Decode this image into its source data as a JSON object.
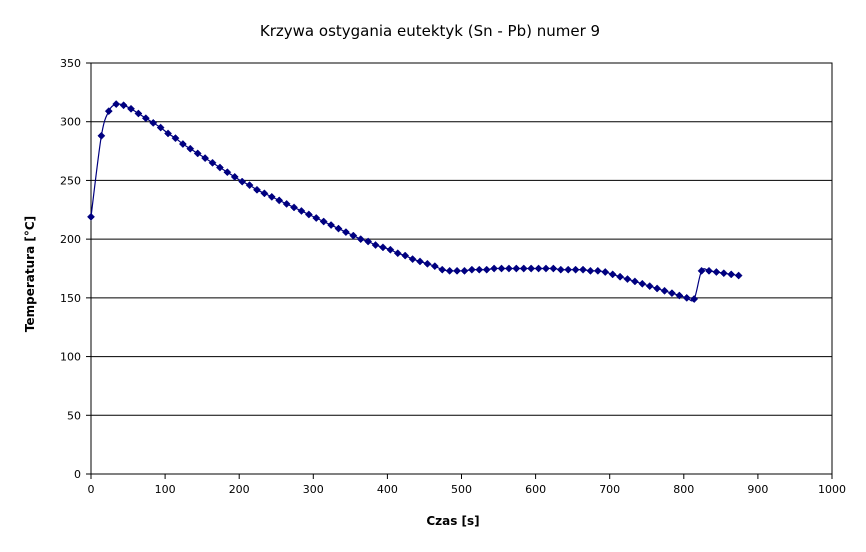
{
  "chart_data": {
    "type": "line",
    "title": "Krzywa ostygania eutektyk (Sn - Pb) numer 9",
    "xlabel": "Czas [s]",
    "ylabel": "Temperatura [°C]",
    "xlim": [
      0,
      1000
    ],
    "ylim": [
      0,
      350
    ],
    "x_ticks": [
      0,
      100,
      200,
      300,
      400,
      500,
      600,
      700,
      800,
      900,
      1000
    ],
    "y_ticks": [
      0,
      50,
      100,
      150,
      200,
      250,
      300,
      350
    ],
    "grid": "horizontal",
    "legend": "none",
    "series_color": "#000080",
    "series": [
      {
        "x": [
          0,
          14,
          24,
          34,
          44,
          54,
          64,
          74,
          84,
          94,
          104,
          114,
          124,
          134,
          144,
          154,
          164,
          174,
          184,
          194,
          204,
          214,
          224,
          234,
          244,
          254,
          264,
          274,
          284,
          294,
          304,
          314,
          324,
          334,
          344,
          354,
          364,
          374,
          384,
          394,
          404,
          414,
          424,
          434,
          444,
          454,
          464,
          474,
          484,
          494,
          504,
          514,
          524,
          534,
          544,
          554,
          564,
          574,
          584,
          594,
          604,
          614,
          624,
          634,
          644,
          654,
          664,
          674,
          684,
          694,
          704,
          714,
          724,
          734,
          744,
          754,
          764,
          774,
          784,
          794,
          804,
          814,
          824,
          834,
          844,
          854,
          864,
          874
        ],
        "y": [
          219,
          288,
          309,
          315,
          314,
          311,
          307,
          303,
          299,
          295,
          290,
          286,
          281,
          277,
          273,
          269,
          265,
          261,
          257,
          253,
          249,
          246,
          242,
          239,
          236,
          233,
          230,
          227,
          224,
          221,
          218,
          215,
          212,
          209,
          206,
          203,
          200,
          198,
          195,
          193,
          191,
          188,
          186,
          183,
          181,
          179,
          177,
          174,
          173,
          173,
          173,
          174,
          174,
          174,
          175,
          175,
          175,
          175,
          175,
          175,
          175,
          175,
          175,
          174,
          174,
          174,
          174,
          173,
          173,
          172,
          170,
          168,
          166,
          164,
          162,
          160,
          158,
          156,
          154,
          152,
          150,
          149,
          173,
          173,
          172,
          171,
          170,
          169
        ]
      }
    ]
  }
}
